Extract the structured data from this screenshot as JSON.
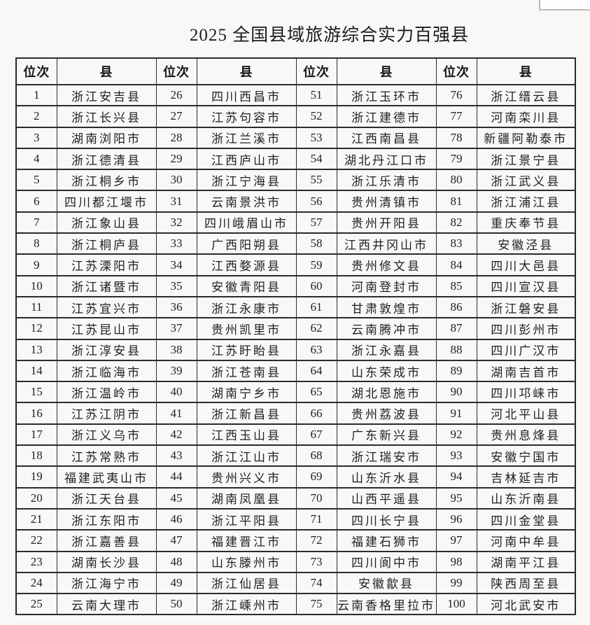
{
  "page": {
    "title": "2025 全国县域旅游综合实力百强县"
  },
  "table": {
    "header": {
      "rank": "位次",
      "county": "县"
    },
    "groups": [
      {
        "entries": [
          [
            "1",
            "浙江安吉县"
          ],
          [
            "2",
            "浙江长兴县"
          ],
          [
            "3",
            "湖南浏阳市"
          ],
          [
            "4",
            "浙江德清县"
          ],
          [
            "5",
            "浙江桐乡市"
          ],
          [
            "6",
            "四川都江堰市"
          ],
          [
            "7",
            "浙江象山县"
          ],
          [
            "8",
            "浙江桐庐县"
          ],
          [
            "9",
            "江苏溧阳市"
          ],
          [
            "10",
            "浙江诸暨市"
          ],
          [
            "11",
            "江苏宜兴市"
          ],
          [
            "12",
            "江苏昆山市"
          ],
          [
            "13",
            "浙江淳安县"
          ],
          [
            "14",
            "浙江临海市"
          ],
          [
            "15",
            "浙江温岭市"
          ],
          [
            "16",
            "江苏江阴市"
          ],
          [
            "17",
            "浙江义乌市"
          ],
          [
            "18",
            "江苏常熟市"
          ],
          [
            "19",
            "福建武夷山市"
          ],
          [
            "20",
            "浙江天台县"
          ],
          [
            "21",
            "浙江东阳市"
          ],
          [
            "22",
            "浙江嘉善县"
          ],
          [
            "23",
            "湖南长沙县"
          ],
          [
            "24",
            "浙江海宁市"
          ],
          [
            "25",
            "云南大理市"
          ]
        ]
      },
      {
        "entries": [
          [
            "26",
            "四川西昌市"
          ],
          [
            "27",
            "江苏句容市"
          ],
          [
            "28",
            "浙江兰溪市"
          ],
          [
            "29",
            "江西庐山市"
          ],
          [
            "30",
            "浙江宁海县"
          ],
          [
            "31",
            "云南景洪市"
          ],
          [
            "32",
            "四川峨眉山市"
          ],
          [
            "33",
            "广西阳朔县"
          ],
          [
            "34",
            "江西婺源县"
          ],
          [
            "35",
            "安徽青阳县"
          ],
          [
            "36",
            "浙江永康市"
          ],
          [
            "37",
            "贵州凯里市"
          ],
          [
            "38",
            "江苏盱眙县"
          ],
          [
            "39",
            "浙江苍南县"
          ],
          [
            "40",
            "湖南宁乡市"
          ],
          [
            "41",
            "浙江新昌县"
          ],
          [
            "42",
            "江西玉山县"
          ],
          [
            "43",
            "浙江江山市"
          ],
          [
            "44",
            "贵州兴义市"
          ],
          [
            "45",
            "湖南凤凰县"
          ],
          [
            "46",
            "浙江平阳县"
          ],
          [
            "47",
            "福建晋江市"
          ],
          [
            "48",
            "山东滕州市"
          ],
          [
            "49",
            "浙江仙居县"
          ],
          [
            "50",
            "浙江嵊州市"
          ]
        ]
      },
      {
        "entries": [
          [
            "51",
            "浙江玉环市"
          ],
          [
            "52",
            "浙江建德市"
          ],
          [
            "53",
            "江西南昌县"
          ],
          [
            "54",
            "湖北丹江口市"
          ],
          [
            "55",
            "浙江乐清市"
          ],
          [
            "56",
            "贵州清镇市"
          ],
          [
            "57",
            "贵州开阳县"
          ],
          [
            "58",
            "江西井冈山市"
          ],
          [
            "59",
            "贵州修文县"
          ],
          [
            "60",
            "河南登封市"
          ],
          [
            "61",
            "甘肃敦煌市"
          ],
          [
            "62",
            "云南腾冲市"
          ],
          [
            "63",
            "浙江永嘉县"
          ],
          [
            "64",
            "山东荣成市"
          ],
          [
            "65",
            "湖北恩施市"
          ],
          [
            "66",
            "贵州荔波县"
          ],
          [
            "67",
            "广东新兴县"
          ],
          [
            "68",
            "浙江瑞安市"
          ],
          [
            "69",
            "山东沂水县"
          ],
          [
            "70",
            "山西平遥县"
          ],
          [
            "71",
            "四川长宁县"
          ],
          [
            "72",
            "福建石狮市"
          ],
          [
            "73",
            "四川阆中市"
          ],
          [
            "74",
            "安徽歙县"
          ],
          [
            "75",
            "云南香格里拉市"
          ]
        ]
      },
      {
        "entries": [
          [
            "76",
            "浙江缙云县"
          ],
          [
            "77",
            "河南栾川县"
          ],
          [
            "78",
            "新疆阿勒泰市"
          ],
          [
            "79",
            "浙江景宁县"
          ],
          [
            "80",
            "浙江武义县"
          ],
          [
            "81",
            "浙江浦江县"
          ],
          [
            "82",
            "重庆奉节县"
          ],
          [
            "83",
            "安徽泾县"
          ],
          [
            "84",
            "四川大邑县"
          ],
          [
            "85",
            "四川宣汉县"
          ],
          [
            "86",
            "浙江磐安县"
          ],
          [
            "87",
            "四川彭州市"
          ],
          [
            "88",
            "四川广汉市"
          ],
          [
            "89",
            "湖南吉首市"
          ],
          [
            "90",
            "四川邛崃市"
          ],
          [
            "91",
            "河北平山县"
          ],
          [
            "92",
            "贵州息烽县"
          ],
          [
            "93",
            "安徽宁国市"
          ],
          [
            "94",
            "吉林延吉市"
          ],
          [
            "95",
            "山东沂南县"
          ],
          [
            "96",
            "四川金堂县"
          ],
          [
            "97",
            "河南中牟县"
          ],
          [
            "98",
            "湖南平江县"
          ],
          [
            "99",
            "陕西周至县"
          ],
          [
            "100",
            "河北武安市"
          ]
        ]
      }
    ]
  }
}
